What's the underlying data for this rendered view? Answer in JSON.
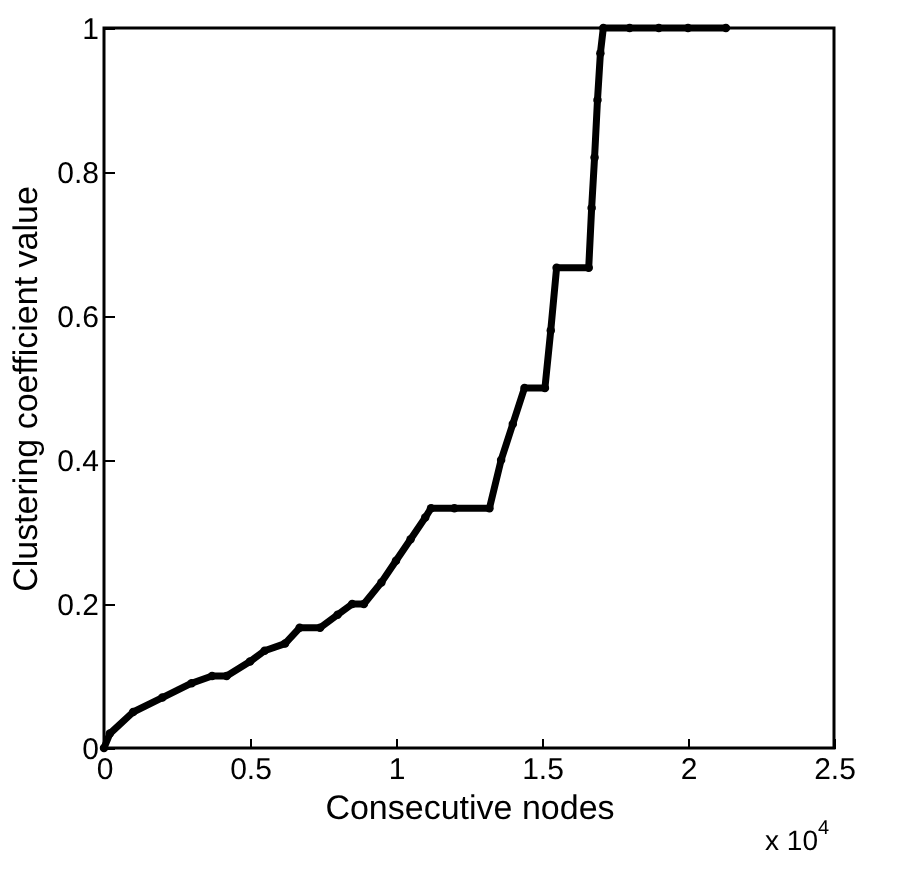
{
  "chart_data": {
    "type": "line",
    "xlabel": "Consecutive nodes",
    "ylabel": "Clustering coefficient value",
    "annotations": [
      "x 10$^{4}$"
    ],
    "marker": "circle",
    "line_style": "solid",
    "grid": false,
    "xlim": [
      0,
      2.5
    ],
    "xticks": [
      0,
      0.5,
      1,
      1.5,
      2,
      2.5
    ],
    "ylim": [
      0,
      1
    ],
    "yticks": [
      0,
      0.2,
      0.4,
      0.6,
      0.8,
      1
    ],
    "series": [
      {
        "color": "#000000",
        "x": [
          0,
          0.02,
          0.1,
          0.2,
          0.3,
          0.37,
          0.42,
          0.5,
          0.55,
          0.62,
          0.67,
          0.74,
          0.8,
          0.85,
          0.89,
          0.95,
          1.0,
          1.05,
          1.1,
          1.12,
          1.2,
          1.32,
          1.36,
          1.4,
          1.44,
          1.51,
          1.53,
          1.55,
          1.66,
          1.67,
          1.68,
          1.69,
          1.7,
          1.71,
          1.8,
          1.9,
          2.0,
          2.13
        ],
        "values": [
          0,
          0.02,
          0.05,
          0.07,
          0.09,
          0.1,
          0.1,
          0.12,
          0.135,
          0.145,
          0.167,
          0.167,
          0.185,
          0.2,
          0.2,
          0.23,
          0.26,
          0.29,
          0.32,
          0.333,
          0.333,
          0.333,
          0.4,
          0.45,
          0.5,
          0.5,
          0.58,
          0.667,
          0.667,
          0.75,
          0.82,
          0.9,
          0.965,
          1,
          1,
          1,
          1,
          1
        ]
      }
    ]
  }
}
